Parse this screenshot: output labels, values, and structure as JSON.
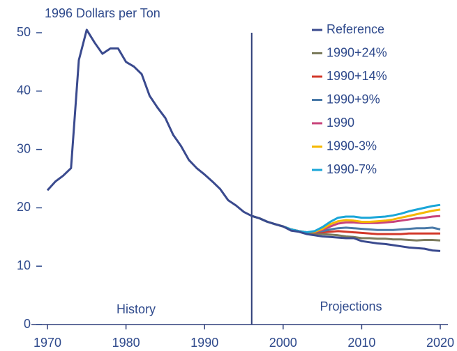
{
  "chart_data": {
    "type": "line",
    "y_label": "1996 Dollars per Ton",
    "annotations": [
      "History",
      "Projections"
    ],
    "projection_start": 1996,
    "x": [
      1970,
      1971,
      1972,
      1973,
      1974,
      1975,
      1976,
      1977,
      1978,
      1979,
      1980,
      1981,
      1982,
      1983,
      1984,
      1985,
      1986,
      1987,
      1988,
      1989,
      1990,
      1991,
      1992,
      1993,
      1994,
      1995,
      1996,
      1997,
      1998,
      1999,
      2000,
      2001,
      2002,
      2003,
      2004,
      2005,
      2006,
      2007,
      2008,
      2009,
      2010,
      2011,
      2012,
      2013,
      2014,
      2015,
      2016,
      2017,
      2018,
      2019,
      2020
    ],
    "xlim": [
      1970,
      2020
    ],
    "xticks": [
      1970,
      1980,
      1990,
      2000,
      2010,
      2020
    ],
    "ylim": [
      0,
      50
    ],
    "yticks": [
      0,
      10,
      20,
      30,
      40,
      50
    ],
    "legend": "top-right",
    "series": [
      {
        "name": "Reference",
        "color": "#3a4a8e",
        "values": [
          23,
          24.5,
          25.5,
          26.8,
          45.3,
          50.5,
          48.3,
          46.4,
          47.3,
          47.3,
          45,
          44.2,
          42.9,
          39.2,
          37.2,
          35.4,
          32.5,
          30.6,
          28.2,
          26.8,
          25.7,
          24.5,
          23.2,
          21.3,
          20.4,
          19.3,
          18.6,
          18.2,
          17.6,
          17.2,
          16.8,
          16.1,
          15.9,
          15.5,
          15.3,
          15.1,
          15.0,
          14.9,
          14.8,
          14.8,
          14.3,
          14.1,
          13.9,
          13.8,
          13.6,
          13.4,
          13.2,
          13.1,
          13.0,
          12.7,
          12.6
        ]
      },
      {
        "name": "1990+24%",
        "color": "#7b7b5c",
        "values": [
          null,
          null,
          null,
          null,
          null,
          null,
          null,
          null,
          null,
          null,
          null,
          null,
          null,
          null,
          null,
          null,
          null,
          null,
          null,
          null,
          null,
          null,
          null,
          null,
          null,
          null,
          18.6,
          18.2,
          17.6,
          17.2,
          16.8,
          16.3,
          16.0,
          15.8,
          15.6,
          15.5,
          15.4,
          15.3,
          15.1,
          15.0,
          14.8,
          14.8,
          14.7,
          14.7,
          14.6,
          14.6,
          14.5,
          14.4,
          14.5,
          14.5,
          14.4
        ]
      },
      {
        "name": "1990+14%",
        "color": "#d2382a",
        "values": [
          null,
          null,
          null,
          null,
          null,
          null,
          null,
          null,
          null,
          null,
          null,
          null,
          null,
          null,
          null,
          null,
          null,
          null,
          null,
          null,
          null,
          null,
          null,
          null,
          null,
          null,
          18.6,
          18.2,
          17.6,
          17.2,
          16.8,
          16.3,
          16.0,
          15.8,
          15.8,
          15.8,
          15.9,
          16.0,
          15.9,
          15.8,
          15.7,
          15.6,
          15.5,
          15.5,
          15.5,
          15.5,
          15.6,
          15.6,
          15.6,
          15.6,
          15.6
        ]
      },
      {
        "name": "1990+9%",
        "color": "#4a7aa8",
        "values": [
          null,
          null,
          null,
          null,
          null,
          null,
          null,
          null,
          null,
          null,
          null,
          null,
          null,
          null,
          null,
          null,
          null,
          null,
          null,
          null,
          null,
          null,
          null,
          null,
          null,
          null,
          18.6,
          18.2,
          17.6,
          17.2,
          16.8,
          16.3,
          16.0,
          15.8,
          15.9,
          16.0,
          16.3,
          16.5,
          16.6,
          16.5,
          16.4,
          16.3,
          16.2,
          16.2,
          16.2,
          16.3,
          16.4,
          16.5,
          16.5,
          16.6,
          16.3
        ]
      },
      {
        "name": "1990",
        "color": "#c8437a",
        "values": [
          null,
          null,
          null,
          null,
          null,
          null,
          null,
          null,
          null,
          null,
          null,
          null,
          null,
          null,
          null,
          null,
          null,
          null,
          null,
          null,
          null,
          null,
          null,
          null,
          null,
          null,
          18.6,
          18.2,
          17.6,
          17.2,
          16.8,
          16.3,
          16.0,
          15.8,
          15.9,
          16.2,
          16.8,
          17.3,
          17.5,
          17.5,
          17.4,
          17.4,
          17.4,
          17.5,
          17.6,
          17.8,
          18.0,
          18.2,
          18.3,
          18.5,
          18.6
        ]
      },
      {
        "name": "1990-3%",
        "color": "#f5b800",
        "values": [
          null,
          null,
          null,
          null,
          null,
          null,
          null,
          null,
          null,
          null,
          null,
          null,
          null,
          null,
          null,
          null,
          null,
          null,
          null,
          null,
          null,
          null,
          null,
          null,
          null,
          null,
          18.6,
          18.2,
          17.6,
          17.2,
          16.8,
          16.3,
          16.0,
          15.8,
          15.9,
          16.4,
          17.2,
          17.7,
          17.9,
          17.8,
          17.6,
          17.6,
          17.7,
          17.8,
          18.0,
          18.3,
          18.6,
          18.9,
          19.2,
          19.5,
          19.7
        ]
      },
      {
        "name": "1990-7%",
        "color": "#1aa6d8",
        "values": [
          null,
          null,
          null,
          null,
          null,
          null,
          null,
          null,
          null,
          null,
          null,
          null,
          null,
          null,
          null,
          null,
          null,
          null,
          null,
          null,
          null,
          null,
          null,
          null,
          null,
          null,
          18.6,
          18.2,
          17.6,
          17.2,
          16.8,
          16.3,
          16.0,
          15.8,
          16.0,
          16.7,
          17.6,
          18.3,
          18.5,
          18.5,
          18.3,
          18.3,
          18.4,
          18.5,
          18.7,
          19.0,
          19.4,
          19.7,
          20.0,
          20.3,
          20.5
        ]
      }
    ]
  }
}
